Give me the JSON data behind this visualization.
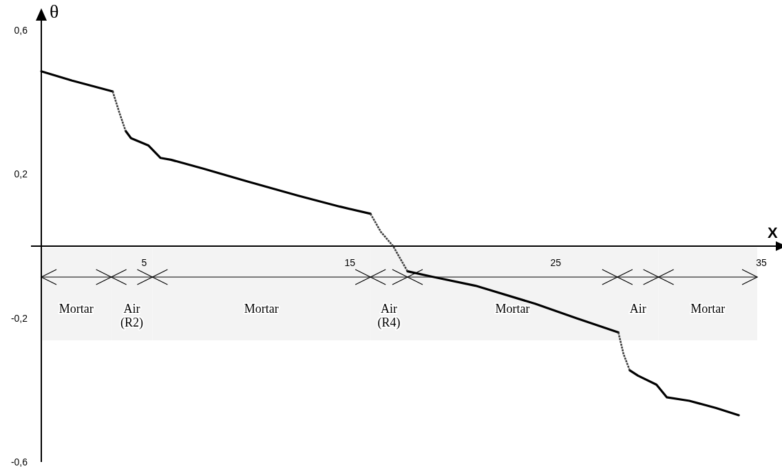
{
  "chart_data": {
    "type": "line",
    "xlabel": "X",
    "ylabel": "θ",
    "xlim": [
      0,
      35.5
    ],
    "ylim": [
      -0.6,
      0.6
    ],
    "xticks": [
      5,
      15,
      25,
      35
    ],
    "yticks": [
      {
        "value": 0.6,
        "label": "0,6"
      },
      {
        "value": 0.2,
        "label": "0,2"
      },
      {
        "value": -0.2,
        "label": "-0,2"
      },
      {
        "value": -0.6,
        "label": "-0,6"
      }
    ],
    "series": [
      {
        "color": "#000000",
        "line_style": "solid",
        "x": [
          0,
          1.5,
          3.47,
          null,
          4.1,
          4.36,
          5.2,
          5.8,
          6.3,
          7.9,
          10,
          12.5,
          14.5,
          16,
          null,
          17.8,
          19,
          21.1,
          24,
          26,
          28.05,
          null,
          28.6,
          29,
          29.9,
          30.4,
          31.5,
          32.8,
          33.9
        ],
        "values": [
          0.486,
          0.46,
          0.43,
          null,
          0.32,
          0.3,
          0.28,
          0.245,
          0.24,
          0.215,
          0.18,
          0.14,
          0.11,
          0.09,
          null,
          -0.07,
          -0.085,
          -0.11,
          -0.16,
          -0.2,
          -0.24,
          null,
          -0.345,
          -0.36,
          -0.385,
          -0.42,
          -0.43,
          -0.45,
          -0.47
        ]
      },
      {
        "color": "#404040",
        "line_style": "dotted",
        "x": [
          3.47,
          3.8,
          4.1,
          null,
          16,
          16.5,
          17.1,
          17.8,
          null,
          28.05,
          28.3,
          28.6
        ],
        "values": [
          0.43,
          0.37,
          0.32,
          null,
          0.09,
          0.04,
          0,
          -0.07,
          null,
          -0.24,
          -0.3,
          -0.345
        ]
      }
    ],
    "bands": [
      {
        "axis": "x",
        "from": 0,
        "to": 3.4,
        "label": "Mortar"
      },
      {
        "axis": "x",
        "from": 3.4,
        "to": 5.4,
        "label": "Air (R2)"
      },
      {
        "axis": "x",
        "from": 5.4,
        "to": 16,
        "label": "Mortar"
      },
      {
        "axis": "x",
        "from": 16,
        "to": 17.8,
        "label": "Air (R4)"
      },
      {
        "axis": "x",
        "from": 17.8,
        "to": 28,
        "label": "Mortar"
      },
      {
        "axis": "x",
        "from": 28,
        "to": 30,
        "label": "Air"
      },
      {
        "axis": "x",
        "from": 30,
        "to": 34.8,
        "label": "Mortar"
      }
    ],
    "grid": false
  }
}
